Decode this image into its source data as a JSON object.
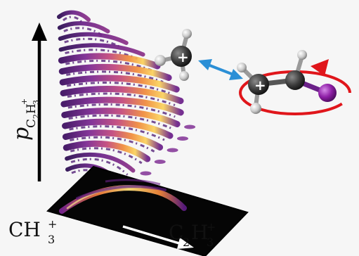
{
  "axis": {
    "y_label_main": "p",
    "y_label_sub_main": "C",
    "y_label_sub_sub1": "2",
    "y_label_sub_second": "H",
    "y_label_sub_sub2": "3",
    "y_label_sup": "+"
  },
  "fragments": {
    "left": {
      "main": "CH",
      "sub": "3",
      "sup": "+"
    },
    "right": {
      "main1": "C",
      "sub1": "2",
      "main2": "H",
      "sub2": "3",
      "sup": "+"
    }
  },
  "molecule": {
    "charge_methyl": "+",
    "charge_vinyl": "+"
  },
  "colors": {
    "transfer_arrow": "#2b8fd6",
    "rotation_arrow": "#e0161b",
    "iodine": "#8e1fa6",
    "carbon": "#3a3a3a",
    "hydrogen": "#c9c9c9",
    "panel": "#050505"
  },
  "icons": [
    "up-arrow-icon",
    "right-arrow-icon",
    "double-headed-arrow-icon",
    "rotation-arrow-icon"
  ]
}
